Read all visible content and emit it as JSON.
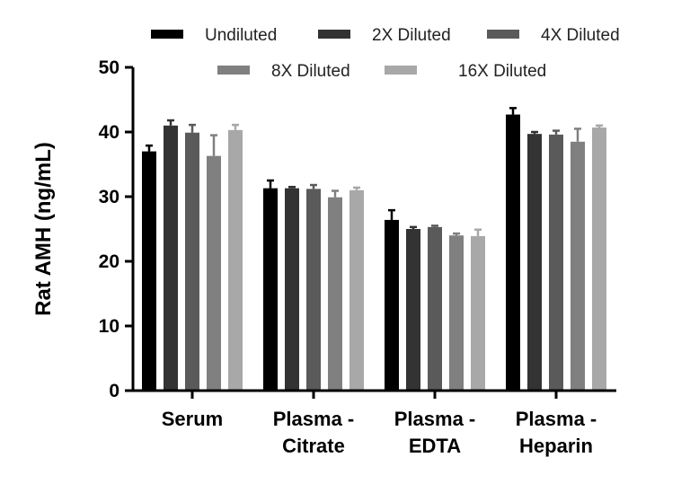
{
  "chart_data": {
    "type": "bar",
    "title": "",
    "xlabel": "",
    "ylabel": "Rat AMH (ng/mL)",
    "ylim": [
      0,
      50
    ],
    "yticks": [
      "0",
      "10",
      "20",
      "30",
      "40",
      "50"
    ],
    "categories": [
      [
        "Serum"
      ],
      [
        "Plasma -",
        "Citrate"
      ],
      [
        "Plasma -",
        "EDTA"
      ],
      [
        "Plasma -",
        "Heparin"
      ]
    ],
    "legend_position": "top",
    "series": [
      {
        "name": "Undiluted",
        "color": "#000000",
        "values": [
          37.0,
          31.3,
          26.4,
          42.7
        ],
        "errors": [
          0.9,
          1.2,
          1.5,
          1.0
        ]
      },
      {
        "name": "2X Diluted",
        "color": "#333333",
        "values": [
          41.0,
          31.3,
          25.0,
          39.7
        ],
        "errors": [
          0.8,
          0.2,
          0.3,
          0.3
        ]
      },
      {
        "name": "4X Diluted",
        "color": "#5a5a5a",
        "values": [
          39.9,
          31.2,
          25.3,
          39.6
        ],
        "errors": [
          1.2,
          0.6,
          0.2,
          0.6
        ]
      },
      {
        "name": "8X Diluted",
        "color": "#808080",
        "values": [
          36.3,
          29.9,
          24.0,
          38.5
        ],
        "errors": [
          3.2,
          1.0,
          0.3,
          2.0
        ]
      },
      {
        "name": "16X Diluted",
        "color": "#a8a8a8",
        "values": [
          40.3,
          31.0,
          23.9,
          40.7
        ],
        "errors": [
          0.8,
          0.4,
          1.0,
          0.3
        ]
      }
    ]
  }
}
